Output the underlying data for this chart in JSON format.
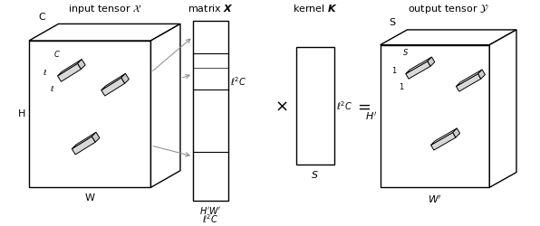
{
  "bg_color": "#ffffff",
  "line_color": "#000000",
  "dashed_color": "#888888",
  "input_tensor_label": "input tensor $\\mathcal{X}$",
  "matrix_label": "matrix $\\boldsymbol{X}$",
  "kernel_label": "kernel $\\boldsymbol{K}$",
  "output_tensor_label": "output tensor $\\mathcal{Y}$",
  "input_label_C": "C",
  "input_label_H": "H",
  "input_label_W": "W",
  "matrix_label_right": "$\\ell^2 C$",
  "matrix_label_bot1": "$H'W'$",
  "matrix_label_bot2": "$\\ell^2 C$",
  "kernel_label_right": "$\\ell^2 C$",
  "kernel_label_bot": "$S$",
  "output_label_S": "S",
  "output_label_Hp": "$H'$",
  "output_label_Wp": "$W'$",
  "multiply_symbol": "$\\times$",
  "equals_symbol": "$=$",
  "filter_color": "#d8d8d8",
  "filter_edge": "#000000"
}
